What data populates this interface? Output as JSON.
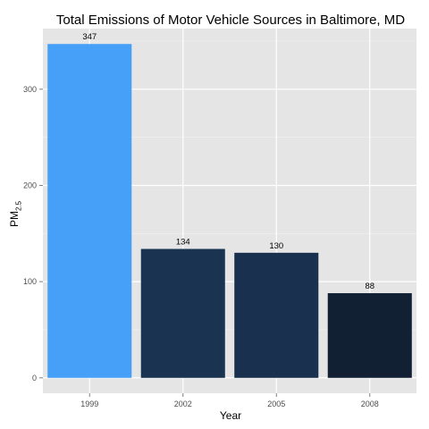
{
  "chart_data": {
    "type": "bar",
    "title": "Total Emissions of Motor Vehicle Sources in Baltimore, MD",
    "xlabel": "Year",
    "ylabel_main": "PM",
    "ylabel_sub": "2.5",
    "categories": [
      "1999",
      "2002",
      "2005",
      "2008"
    ],
    "values": [
      347,
      134,
      130,
      88
    ],
    "value_labels": [
      "347",
      "134",
      "130",
      "88"
    ],
    "bar_colors": [
      "#46a0f8",
      "#1a3350",
      "#19314f",
      "#112133"
    ],
    "ylim": [
      -16,
      363
    ],
    "yticks": [
      0,
      100,
      200,
      300
    ],
    "ytick_labels": [
      "0",
      "100",
      "200",
      "300"
    ],
    "grid": true,
    "panel_background": "#e5e5e5",
    "grid_color": "#ffffff"
  }
}
